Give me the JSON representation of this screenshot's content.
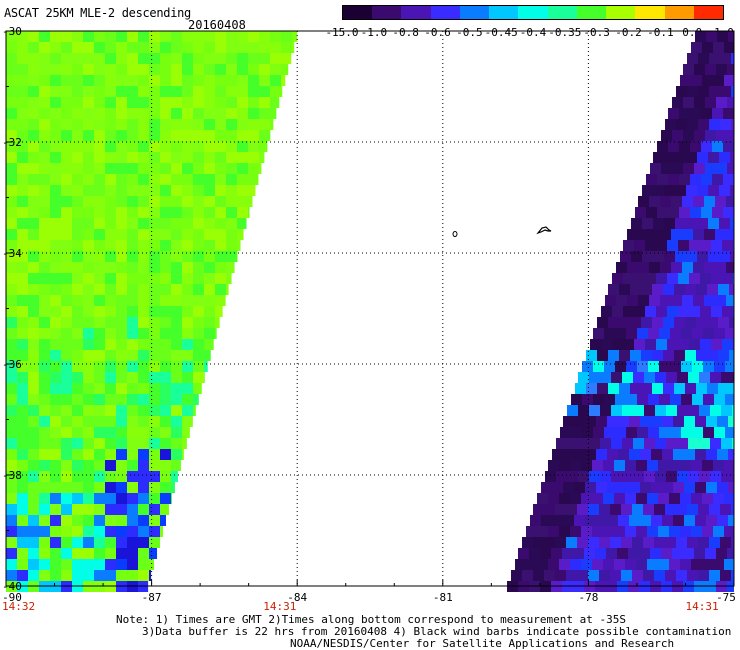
{
  "title": "ASCAT 25KM MLE-2 descending",
  "date": "20160408",
  "colorbar": {
    "labels": [
      "-15.0",
      "-1.0",
      "-0.8",
      "-0.6",
      "-0.5",
      "-0.45",
      "-0.4",
      "-0.35",
      "-0.3",
      "-0.2",
      "-0.1",
      "0.0",
      "1.0"
    ],
    "colors": [
      "#1a0033",
      "#3a0a6e",
      "#4b14b4",
      "#3a2cff",
      "#0a7cff",
      "#00c8ff",
      "#00ffe6",
      "#19ff9a",
      "#44ff2a",
      "#a8ff00",
      "#ffe800",
      "#ff9a00",
      "#ff2a00"
    ]
  },
  "axes": {
    "lat_labels": [
      "-30",
      "-32",
      "-34",
      "-36",
      "-38",
      "-40"
    ],
    "lon_labels": [
      "-90",
      "-87",
      "-84",
      "-81",
      "-78",
      "-75"
    ],
    "lat_range": [
      -40,
      -30
    ],
    "lon_range": [
      -90,
      -75
    ],
    "time_labels": [
      {
        "text": "14:32",
        "lon": -90
      },
      {
        "text": "14:31",
        "lon": -84.7
      },
      {
        "text": "14:31",
        "lon": -76.0
      }
    ]
  },
  "notes": [
    "Note: 1) Times are GMT 2)Times along bottom correspond to measurement at -35S",
    "3)Data buffer is 22 hrs from 20160408 4) Black wind barbs indicate possible contamination",
    "NOAA/NESDIS/Center for Satellite Applications and Research"
  ],
  "swaths": {
    "west": {
      "lon_west": -90,
      "edge_north_lon": -84,
      "edge_south_lon": -87.1
    },
    "east": {
      "lon_east": -75,
      "edge_north_lon": -75.8,
      "edge_south_lon": -79.7
    }
  },
  "colors": {
    "grid": "#000000",
    "time_label": "#cc2200"
  }
}
